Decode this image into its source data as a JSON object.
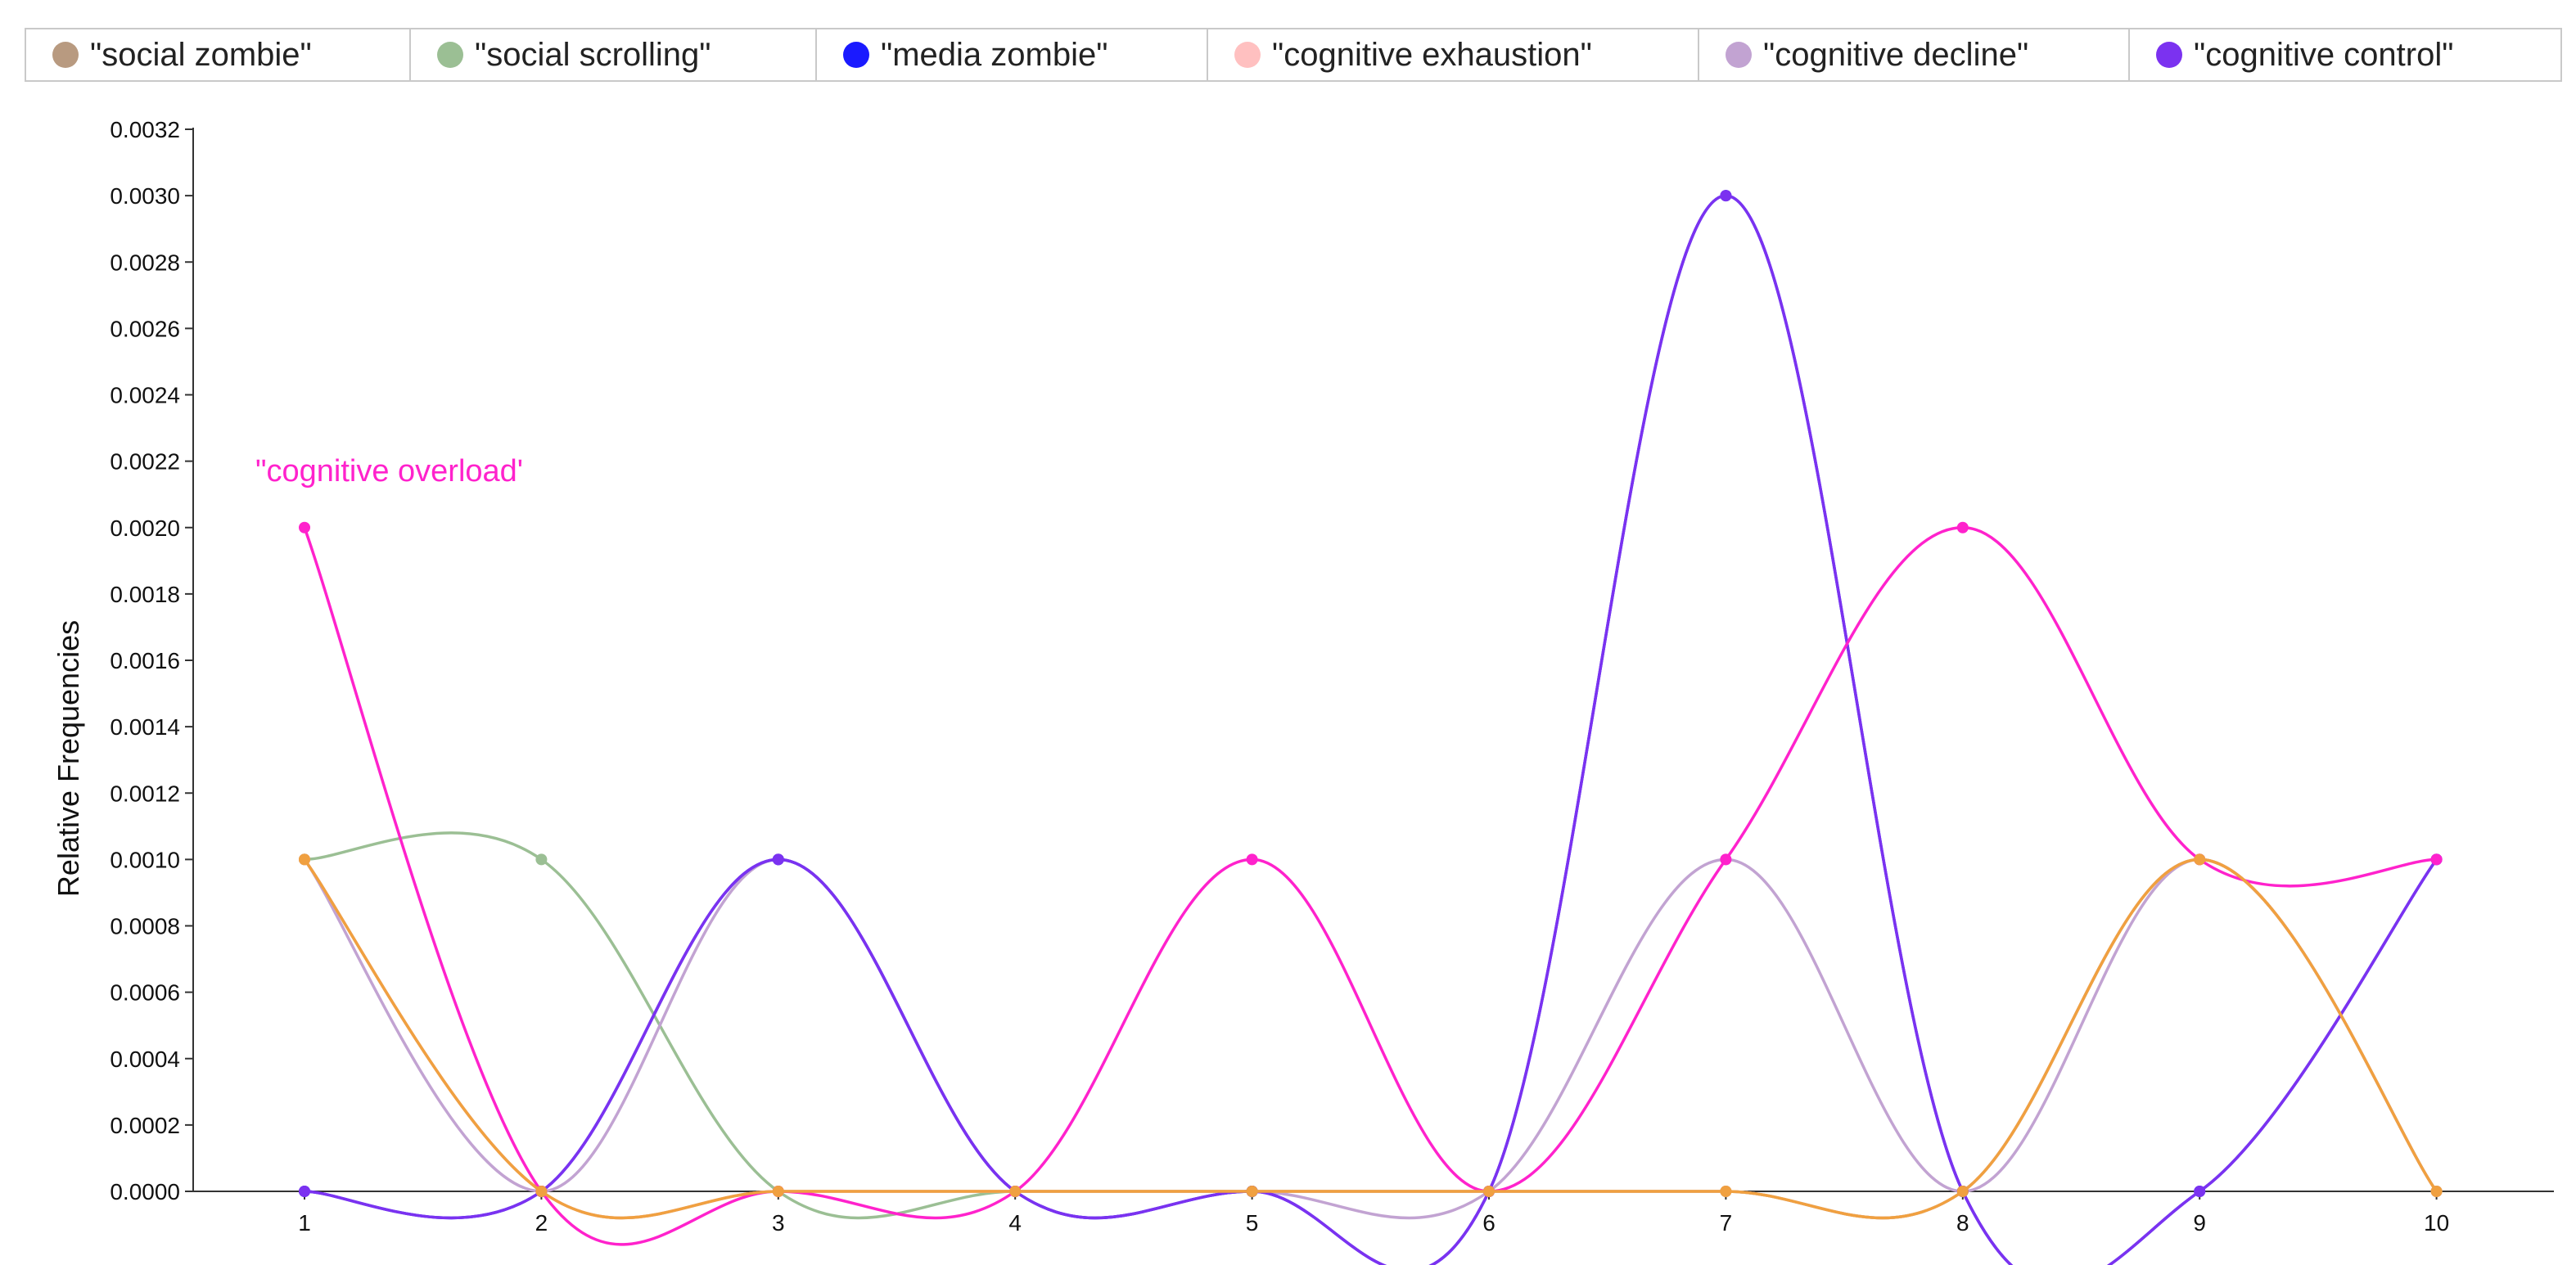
{
  "legend": [
    {
      "label": "\"social zombie\"",
      "color": "#b89a80"
    },
    {
      "label": "\"social scrolling\"",
      "color": "#9bbf94"
    },
    {
      "label": "\"media zombie\"",
      "color": "#1a1aff"
    },
    {
      "label": "\"cognitive exhaustion\"",
      "color": "#ffc0c0"
    },
    {
      "label": "\"cognitive decline\"",
      "color": "#c2a3d2"
    },
    {
      "label": "\"cognitive control\"",
      "color": "#7b32f0"
    }
  ],
  "chart_data": {
    "type": "line",
    "xlabel": "",
    "ylabel": "Relative Frequencies",
    "x": [
      1,
      2,
      3,
      4,
      5,
      6,
      7,
      8,
      9,
      10
    ],
    "ylim": [
      0,
      0.0032
    ],
    "yticks": [
      "0.0000",
      "0.0002",
      "0.0004",
      "0.0006",
      "0.0008",
      "0.0010",
      "0.0012",
      "0.0014",
      "0.0016",
      "0.0018",
      "0.0020",
      "0.0022",
      "0.0024",
      "0.0026",
      "0.0028",
      "0.0030",
      "0.0032"
    ],
    "annotation": {
      "text": "\"cognitive overload'",
      "color": "#ff22cc"
    },
    "series": [
      {
        "name": "\"social scrolling\"",
        "color": "#9bbf94",
        "values": [
          0.001,
          0.001,
          0,
          0,
          0,
          0,
          0,
          0,
          0.001,
          0
        ]
      },
      {
        "name": "\"cognitive decline\"",
        "color": "#c2a3d2",
        "values": [
          0.001,
          0,
          0.001,
          0,
          0,
          0,
          0.001,
          0,
          0.001,
          0
        ]
      },
      {
        "name": "\"social zombie\"",
        "color": "#b89a80",
        "values": [
          0.001,
          0,
          0,
          0,
          0,
          0,
          0,
          0,
          0.001,
          0
        ]
      },
      {
        "name": "\"cognitive exhaustion\"",
        "color": "#ffc0c0",
        "values": [
          0.001,
          0,
          0,
          0,
          0,
          0,
          0,
          0,
          0.001,
          0
        ]
      },
      {
        "name": "\"media zombie\"",
        "color": "#1a1aff",
        "values": [
          0,
          0,
          0.001,
          0,
          0,
          0,
          0.003,
          0,
          0,
          0.001
        ]
      },
      {
        "name": "\"cognitive control\"",
        "color": "#7b32f0",
        "values": [
          0,
          0,
          0.001,
          0,
          0,
          0,
          0.003,
          0,
          0,
          0.001
        ]
      },
      {
        "name": "\"cognitive overload'",
        "color": "#ff22cc",
        "values": [
          0.002,
          0,
          0,
          0,
          0.001,
          0,
          0.001,
          0.002,
          0.001,
          0.001
        ]
      },
      {
        "name": "",
        "color": "#f0a040",
        "values": [
          0.001,
          0,
          0,
          0,
          0,
          0,
          0,
          0,
          0.001,
          0
        ]
      }
    ]
  }
}
